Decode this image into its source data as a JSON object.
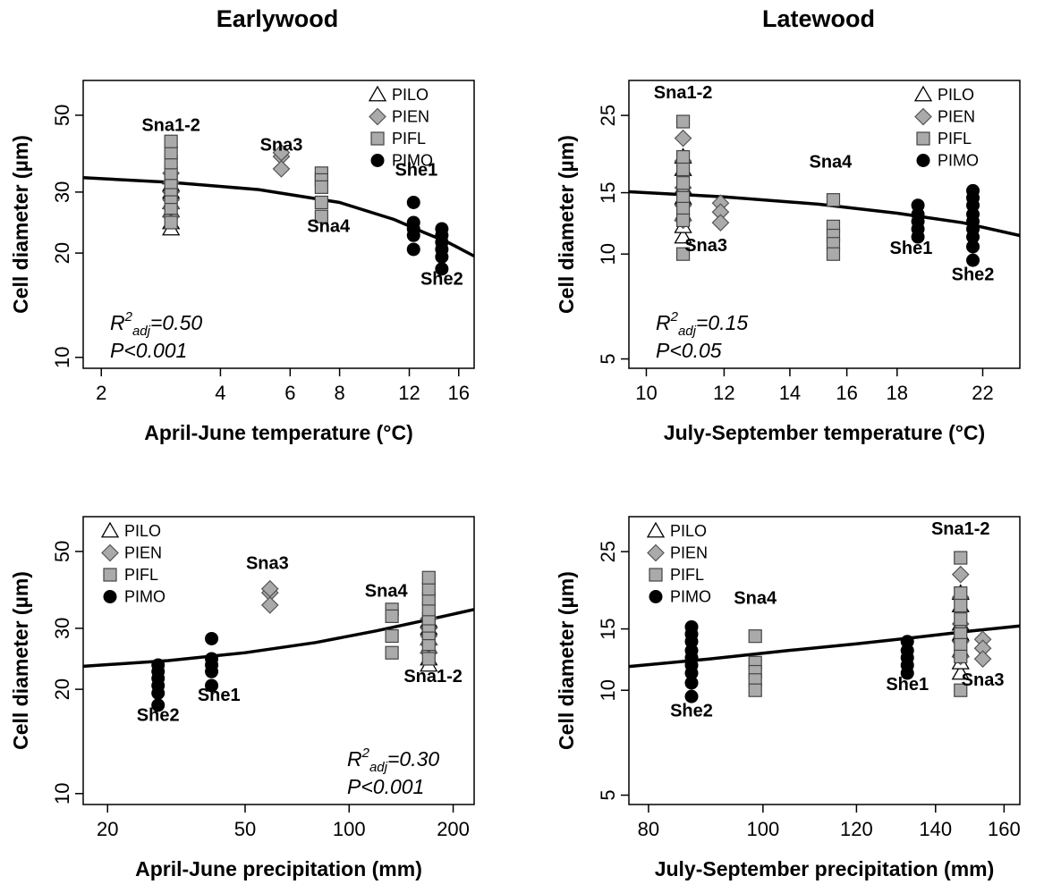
{
  "column_titles": [
    "Earlywood",
    "Latewood"
  ],
  "legend": [
    {
      "label": "PILO",
      "marker": "triangle"
    },
    {
      "label": "PIEN",
      "marker": "diamond"
    },
    {
      "label": "PIFL",
      "marker": "square"
    },
    {
      "label": "PIMO",
      "marker": "circle"
    }
  ],
  "colors": {
    "grey_fill": "#aaaaaa",
    "black": "#000000",
    "white": "#ffffff"
  },
  "chart_data": [
    {
      "id": "earlywood-temperature",
      "type": "scatter",
      "xlabel": "April-June temperature (°C)",
      "ylabel": "Cell diameter (µm)",
      "xscale": "log",
      "yscale": "log",
      "xlim": [
        1.8,
        17.5
      ],
      "ylim": [
        9.3,
        63
      ],
      "xticks": [
        2,
        4,
        6,
        8,
        12,
        16
      ],
      "yticks": [
        10,
        20,
        30,
        50
      ],
      "stats": {
        "r2_prefix": "R",
        "r2_sup": "2",
        "r2_sub": "adj",
        "r2_value": "=0.50",
        "p": "P<0.001"
      },
      "stats_position": "bottom-left",
      "legend_position": "top-right",
      "fit": {
        "x": [
          1.8,
          3,
          5,
          8,
          11,
          13,
          15,
          17.5
        ],
        "y": [
          33,
          32,
          30.5,
          28,
          25,
          23,
          21.5,
          19.6
        ]
      },
      "site_labels": [
        {
          "text": "Sna1-2",
          "x": 3.0,
          "y": 45
        },
        {
          "text": "Sna3",
          "x": 5.7,
          "y": 39.5
        },
        {
          "text": "Sna4",
          "x": 7.5,
          "y": 23
        },
        {
          "text": "She1",
          "x": 12.5,
          "y": 33.5
        },
        {
          "text": "She2",
          "x": 14.5,
          "y": 16.2
        }
      ],
      "series": [
        {
          "name": "PILO",
          "marker": "triangle",
          "points": [
            [
              3.0,
              23.5
            ],
            [
              3.0,
              24.5
            ],
            [
              3.0,
              26.5
            ],
            [
              3.0,
              28
            ],
            [
              3.0,
              30
            ],
            [
              3.0,
              31.5
            ],
            [
              3.0,
              33
            ]
          ]
        },
        {
          "name": "PIEN",
          "marker": "diamond",
          "points": [
            [
              3.0,
              25.5
            ],
            [
              3.0,
              27
            ],
            [
              3.0,
              28.5
            ],
            [
              3.0,
              30
            ],
            [
              3.0,
              32
            ],
            [
              3.0,
              34
            ],
            [
              5.7,
              38
            ],
            [
              5.7,
              39
            ],
            [
              5.7,
              35
            ]
          ]
        },
        {
          "name": "PIFL",
          "marker": "square",
          "points": [
            [
              3.0,
              24.5
            ],
            [
              3.0,
              27
            ],
            [
              3.0,
              29
            ],
            [
              3.0,
              30.5
            ],
            [
              3.0,
              32
            ],
            [
              3.0,
              34
            ],
            [
              3.0,
              36.5
            ],
            [
              3.0,
              39
            ],
            [
              3.0,
              42
            ],
            [
              7.2,
              34
            ],
            [
              7.2,
              32.5
            ],
            [
              7.2,
              31
            ],
            [
              7.2,
              28
            ],
            [
              7.2,
              25.5
            ]
          ]
        },
        {
          "name": "PIMO",
          "marker": "circle",
          "points": [
            [
              12.3,
              28
            ],
            [
              12.3,
              24.5
            ],
            [
              12.3,
              23.5
            ],
            [
              12.3,
              22.5
            ],
            [
              12.3,
              20.5
            ],
            [
              14.5,
              23.5
            ],
            [
              14.5,
              22.5
            ],
            [
              14.5,
              21.5
            ],
            [
              14.5,
              20.5
            ],
            [
              14.5,
              19.5
            ],
            [
              14.5,
              18
            ]
          ]
        }
      ]
    },
    {
      "id": "latewood-temperature",
      "type": "scatter",
      "xlabel": "July-September temperature (°C)",
      "ylabel": "Cell diameter (µm)",
      "xscale": "log",
      "yscale": "log",
      "xlim": [
        9.6,
        24
      ],
      "ylim": [
        4.7,
        31.5
      ],
      "xticks": [
        10,
        12,
        14,
        16,
        18,
        22
      ],
      "yticks": [
        5,
        10,
        15,
        25
      ],
      "stats": {
        "r2_prefix": "R",
        "r2_sup": "2",
        "r2_sub": "adj",
        "r2_value": "=0.15",
        "p": "P<0.05"
      },
      "stats_position": "bottom-left",
      "legend_position": "top-right",
      "fit": {
        "x": [
          9.6,
          12,
          15,
          18,
          21,
          24
        ],
        "y": [
          15.1,
          14.6,
          13.9,
          13.1,
          12.3,
          11.3
        ]
      },
      "site_labels": [
        {
          "text": "Sna1-2",
          "x": 10.9,
          "y": 28
        },
        {
          "text": "Sna3",
          "x": 11.5,
          "y": 10.2
        },
        {
          "text": "Sna4",
          "x": 15.4,
          "y": 17.7
        },
        {
          "text": "She1",
          "x": 18.6,
          "y": 10
        },
        {
          "text": "She2",
          "x": 21.5,
          "y": 8.4
        }
      ],
      "series": [
        {
          "name": "PILO",
          "marker": "triangle",
          "points": [
            [
              10.9,
              11.2
            ],
            [
              10.9,
              12
            ],
            [
              10.9,
              13
            ],
            [
              10.9,
              14.5
            ],
            [
              10.9,
              15.5
            ],
            [
              10.9,
              17.5
            ],
            [
              10.9,
              19
            ]
          ]
        },
        {
          "name": "PIEN",
          "marker": "diamond",
          "points": [
            [
              10.9,
              21.5
            ],
            [
              10.9,
              18.5
            ],
            [
              10.9,
              15.5
            ],
            [
              10.9,
              13.8
            ],
            [
              10.9,
              12.5
            ],
            [
              11.9,
              14
            ],
            [
              11.9,
              13.2
            ],
            [
              11.9,
              12.3
            ]
          ]
        },
        {
          "name": "PIFL",
          "marker": "square",
          "points": [
            [
              10.9,
              24
            ],
            [
              10.9,
              19
            ],
            [
              10.9,
              17.5
            ],
            [
              10.9,
              16
            ],
            [
              10.9,
              14.5
            ],
            [
              10.9,
              13.5
            ],
            [
              10.9,
              12.5
            ],
            [
              10.9,
              10
            ],
            [
              15.5,
              14.3
            ],
            [
              15.5,
              12
            ],
            [
              15.5,
              11.3
            ],
            [
              15.5,
              10.7
            ],
            [
              15.5,
              10
            ]
          ]
        },
        {
          "name": "PIMO",
          "marker": "circle",
          "points": [
            [
              18.9,
              13.8
            ],
            [
              18.9,
              13
            ],
            [
              18.9,
              12.4
            ],
            [
              18.9,
              11.8
            ],
            [
              18.9,
              11.2
            ],
            [
              21.5,
              15.2
            ],
            [
              21.5,
              14.5
            ],
            [
              21.5,
              13.8
            ],
            [
              21.5,
              13
            ],
            [
              21.5,
              12.4
            ],
            [
              21.5,
              11.8
            ],
            [
              21.5,
              11.2
            ],
            [
              21.5,
              10.5
            ],
            [
              21.5,
              9.6
            ]
          ]
        }
      ]
    },
    {
      "id": "earlywood-precipitation",
      "type": "scatter",
      "xlabel": "April-June precipitation (mm)",
      "ylabel": "Cell diameter (µm)",
      "xscale": "log",
      "yscale": "log",
      "xlim": [
        17,
        230
      ],
      "ylim": [
        9.3,
        63
      ],
      "xticks": [
        20,
        50,
        100,
        200
      ],
      "yticks": [
        10,
        20,
        30,
        50
      ],
      "stats": {
        "r2_prefix": "R",
        "r2_sup": "2",
        "r2_sub": "adj",
        "r2_value": "=0.30",
        "p": "P<0.001"
      },
      "stats_position": "bottom-right",
      "legend_position": "top-left",
      "fit": {
        "x": [
          17,
          30,
          50,
          80,
          120,
          170,
          230
        ],
        "y": [
          23.3,
          24.2,
          25.5,
          27.3,
          29.5,
          31.8,
          34
        ]
      },
      "site_labels": [
        {
          "text": "She2",
          "x": 28,
          "y": 16.2
        },
        {
          "text": "She1",
          "x": 42,
          "y": 18.5
        },
        {
          "text": "Sna3",
          "x": 58,
          "y": 44.5
        },
        {
          "text": "Sna4",
          "x": 128,
          "y": 37
        },
        {
          "text": "Sna1-2",
          "x": 175,
          "y": 21
        }
      ],
      "series": [
        {
          "name": "PILO",
          "marker": "triangle",
          "points": [
            [
              170,
              23.5
            ],
            [
              170,
              24.5
            ],
            [
              170,
              26.5
            ],
            [
              170,
              28
            ],
            [
              170,
              30
            ],
            [
              170,
              31.5
            ]
          ]
        },
        {
          "name": "PIEN",
          "marker": "diamond",
          "points": [
            [
              59,
              38
            ],
            [
              59,
              39
            ],
            [
              59,
              35
            ],
            [
              170,
              25.5
            ],
            [
              170,
              27
            ],
            [
              170,
              28.5
            ],
            [
              170,
              30
            ],
            [
              170,
              32
            ]
          ]
        },
        {
          "name": "PIFL",
          "marker": "square",
          "points": [
            [
              133,
              34
            ],
            [
              133,
              32.5
            ],
            [
              133,
              28.5
            ],
            [
              133,
              25.5
            ],
            [
              170,
              24.5
            ],
            [
              170,
              27
            ],
            [
              170,
              29
            ],
            [
              170,
              30.5
            ],
            [
              170,
              32
            ],
            [
              170,
              34
            ],
            [
              170,
              36.5
            ],
            [
              170,
              39
            ],
            [
              170,
              42
            ]
          ]
        },
        {
          "name": "PIMO",
          "marker": "circle",
          "points": [
            [
              28,
              23.5
            ],
            [
              28,
              22.5
            ],
            [
              28,
              21.5
            ],
            [
              28,
              20.5
            ],
            [
              28,
              19.5
            ],
            [
              28,
              18
            ],
            [
              40,
              28
            ],
            [
              40,
              24.5
            ],
            [
              40,
              23.5
            ],
            [
              40,
              22.5
            ],
            [
              40,
              20.5
            ]
          ]
        }
      ]
    },
    {
      "id": "latewood-precipitation",
      "type": "scatter",
      "xlabel": "July-September precipitation (mm)",
      "ylabel": "Cell diameter (µm)",
      "xscale": "log",
      "yscale": "log",
      "xlim": [
        77,
        165
      ],
      "ylim": [
        4.7,
        31.5
      ],
      "xticks": [
        80,
        100,
        120,
        140,
        160
      ],
      "yticks": [
        5,
        10,
        15,
        25
      ],
      "stats": null,
      "legend_position": "top-left",
      "fit": {
        "x": [
          77,
          90,
          105,
          120,
          135,
          150,
          165
        ],
        "y": [
          11.7,
          12.3,
          13,
          13.6,
          14.2,
          14.8,
          15.3
        ]
      },
      "site_labels": [
        {
          "text": "She2",
          "x": 87,
          "y": 8.4
        },
        {
          "text": "Sna4",
          "x": 98.5,
          "y": 17.7
        },
        {
          "text": "She1",
          "x": 132.5,
          "y": 10
        },
        {
          "text": "Sna1-2",
          "x": 147,
          "y": 28
        },
        {
          "text": "Sna3",
          "x": 153.5,
          "y": 10.3
        }
      ],
      "series": [
        {
          "name": "PILO",
          "marker": "triangle",
          "points": [
            [
              147,
              11.2
            ],
            [
              147,
              12
            ],
            [
              147,
              13
            ],
            [
              147,
              14.5
            ],
            [
              147,
              15.5
            ],
            [
              147,
              17.5
            ],
            [
              147,
              19
            ]
          ]
        },
        {
          "name": "PIEN",
          "marker": "diamond",
          "points": [
            [
              147,
              21.5
            ],
            [
              147,
              18.5
            ],
            [
              147,
              15.5
            ],
            [
              147,
              13.8
            ],
            [
              147,
              12.5
            ],
            [
              153.5,
              14
            ],
            [
              153.5,
              13.2
            ],
            [
              153.5,
              12.3
            ]
          ]
        },
        {
          "name": "PIFL",
          "marker": "square",
          "points": [
            [
              147,
              24
            ],
            [
              147,
              19
            ],
            [
              147,
              17.5
            ],
            [
              147,
              16
            ],
            [
              147,
              14.5
            ],
            [
              147,
              13.5
            ],
            [
              147,
              12.5
            ],
            [
              147,
              10
            ],
            [
              98.5,
              14.3
            ],
            [
              98.5,
              12
            ],
            [
              98.5,
              11.3
            ],
            [
              98.5,
              10.7
            ],
            [
              98.5,
              10
            ]
          ]
        },
        {
          "name": "PIMO",
          "marker": "circle",
          "points": [
            [
              87,
              15.2
            ],
            [
              87,
              14.5
            ],
            [
              87,
              13.8
            ],
            [
              87,
              13
            ],
            [
              87,
              12.4
            ],
            [
              87,
              11.8
            ],
            [
              87,
              11.2
            ],
            [
              87,
              10.5
            ],
            [
              87,
              9.6
            ],
            [
              132.5,
              13.8
            ],
            [
              132.5,
              13
            ],
            [
              132.5,
              12.4
            ],
            [
              132.5,
              11.8
            ],
            [
              132.5,
              11.2
            ]
          ]
        }
      ]
    }
  ]
}
